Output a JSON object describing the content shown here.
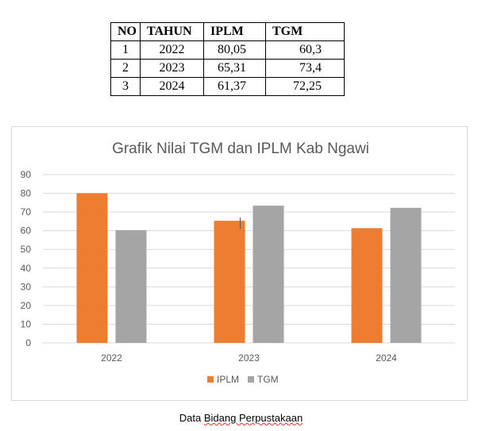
{
  "table": {
    "headers": [
      "NO",
      "TAHUN",
      "IPLM",
      "TGM"
    ],
    "rows": [
      [
        "1",
        "2022",
        "80,05",
        "60,3"
      ],
      [
        "2",
        "2023",
        "65,31",
        "73,4"
      ],
      [
        "3",
        "2024",
        "61,37",
        "72,25"
      ]
    ]
  },
  "chart_data": {
    "type": "bar",
    "title": "Grafik Nilai TGM dan IPLM Kab Ngawi",
    "categories": [
      "2022",
      "2023",
      "2024"
    ],
    "series": [
      {
        "name": "IPLM",
        "values": [
          80.05,
          65.31,
          61.37
        ],
        "color": "#ed7d31"
      },
      {
        "name": "TGM",
        "values": [
          60.3,
          73.4,
          72.25
        ],
        "color": "#a5a5a5"
      }
    ],
    "ylim": [
      0,
      90
    ],
    "yticks": [
      "0",
      "10",
      "20",
      "30",
      "40",
      "50",
      "60",
      "70",
      "80",
      "90"
    ],
    "grid": true,
    "legend": "bottom"
  },
  "caption": {
    "prefix": "Data ",
    "underlined": "Bidang Perpustakaan"
  }
}
